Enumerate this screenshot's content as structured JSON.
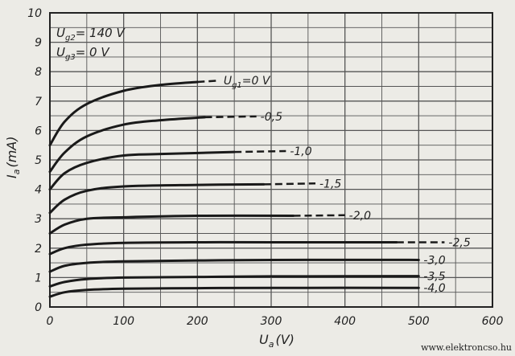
{
  "chart_data": {
    "type": "line",
    "xlabel": "U",
    "xlabel_sub": "a",
    "xlabel_unit": "(V)",
    "ylabel": "I",
    "ylabel_sub": "a",
    "ylabel_unit": "(mA)",
    "xlim": [
      0,
      600
    ],
    "ylim": [
      0,
      10
    ],
    "x_ticks": [
      "0",
      "100",
      "200",
      "300",
      "400",
      "500",
      "600"
    ],
    "y_ticks": [
      "0",
      "1",
      "2",
      "3",
      "4",
      "5",
      "6",
      "7",
      "8",
      "9",
      "10"
    ],
    "x_tick_values": [
      0,
      100,
      200,
      300,
      400,
      500,
      600
    ],
    "y_tick_values": [
      0,
      1,
      2,
      3,
      4,
      5,
      6,
      7,
      8,
      9,
      10
    ],
    "grid": true,
    "conditions": [
      {
        "symbol": "U",
        "sub": "g2",
        "text": "= 140 V"
      },
      {
        "symbol": "U",
        "sub": "g3",
        "text": "=  0 V"
      }
    ],
    "series": [
      {
        "name": "Ug1=0V",
        "label": "0 V",
        "label_prefix": "g1",
        "x": [
          0,
          20,
          50,
          100,
          150,
          200
        ],
        "y": [
          5.5,
          6.3,
          6.9,
          7.35,
          7.55,
          7.65
        ],
        "dashed_x": [
          200,
          230
        ],
        "dashed_y": [
          7.65,
          7.7
        ]
      },
      {
        "name": "-0.5",
        "label": "-0,5",
        "x": [
          0,
          20,
          50,
          100,
          150,
          210
        ],
        "y": [
          4.6,
          5.25,
          5.8,
          6.2,
          6.35,
          6.45
        ],
        "dashed_x": [
          210,
          280
        ],
        "dashed_y": [
          6.45,
          6.48
        ]
      },
      {
        "name": "-1.0",
        "label": "-1,0",
        "x": [
          0,
          20,
          50,
          100,
          150,
          250
        ],
        "y": [
          4.0,
          4.55,
          4.9,
          5.15,
          5.2,
          5.27
        ],
        "dashed_x": [
          250,
          320
        ],
        "dashed_y": [
          5.27,
          5.3
        ]
      },
      {
        "name": "-1.5",
        "label": "-1,5",
        "x": [
          0,
          20,
          50,
          100,
          200,
          290
        ],
        "y": [
          3.2,
          3.65,
          3.95,
          4.1,
          4.15,
          4.17
        ],
        "dashed_x": [
          290,
          360
        ],
        "dashed_y": [
          4.17,
          4.2
        ]
      },
      {
        "name": "-2.0",
        "label": "-2,0",
        "x": [
          0,
          20,
          50,
          100,
          200,
          330
        ],
        "y": [
          2.5,
          2.8,
          3.0,
          3.05,
          3.1,
          3.1
        ],
        "dashed_x": [
          330,
          400
        ],
        "dashed_y": [
          3.1,
          3.12
        ]
      },
      {
        "name": "-2.5",
        "label": "-2,5",
        "x": [
          0,
          20,
          50,
          100,
          200,
          300,
          470
        ],
        "y": [
          1.8,
          2.0,
          2.12,
          2.18,
          2.2,
          2.2,
          2.2
        ],
        "dashed_x": [
          470,
          535
        ],
        "dashed_y": [
          2.2,
          2.2
        ]
      },
      {
        "name": "-3.0",
        "label": "-3,0",
        "x": [
          0,
          20,
          50,
          100,
          200,
          300,
          500
        ],
        "y": [
          1.2,
          1.4,
          1.5,
          1.55,
          1.58,
          1.6,
          1.6
        ],
        "dashed_x": [],
        "dashed_y": []
      },
      {
        "name": "-3.5",
        "label": "-3,5",
        "x": [
          0,
          20,
          50,
          100,
          200,
          300,
          500
        ],
        "y": [
          0.7,
          0.85,
          0.95,
          1.0,
          1.02,
          1.04,
          1.05
        ],
        "dashed_x": [],
        "dashed_y": []
      },
      {
        "name": "-4.0",
        "label": "-4,0",
        "x": [
          0,
          20,
          50,
          100,
          200,
          300,
          500
        ],
        "y": [
          0.35,
          0.5,
          0.58,
          0.62,
          0.64,
          0.65,
          0.65
        ],
        "dashed_x": [],
        "dashed_y": []
      }
    ]
  },
  "watermark": "www.elektroncso.hu"
}
